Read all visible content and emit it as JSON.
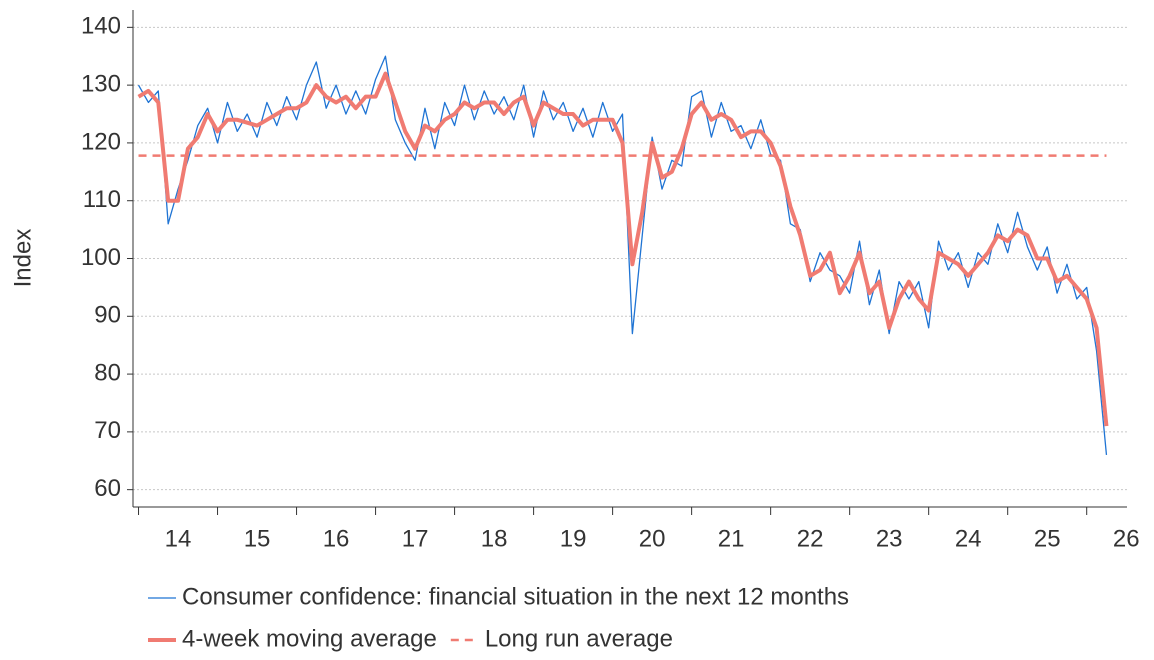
{
  "chart_data": {
    "type": "line",
    "y_label": "Index",
    "xlim": [
      13.43,
      26.01
    ],
    "ylim": [
      57,
      143
    ],
    "xticks": [
      14,
      15,
      16,
      17,
      18,
      19,
      20,
      21,
      22,
      23,
      24,
      25,
      26
    ],
    "xtick_marks": [
      13.5,
      14.5,
      15.5,
      16.5,
      17.5,
      18.5,
      19.5,
      20.5,
      21.5,
      22.5,
      23.5,
      24.5,
      25.5
    ],
    "yticks": [
      60,
      70,
      80,
      90,
      100,
      110,
      120,
      130,
      140
    ],
    "grid": true,
    "legend": "bottom",
    "x": [
      13.5,
      13.625,
      13.75,
      13.875,
      14.0,
      14.125,
      14.25,
      14.375,
      14.5,
      14.625,
      14.75,
      14.875,
      15.0,
      15.125,
      15.25,
      15.375,
      15.5,
      15.625,
      15.75,
      15.875,
      16.0,
      16.125,
      16.25,
      16.375,
      16.5,
      16.625,
      16.75,
      16.875,
      17.0,
      17.125,
      17.25,
      17.375,
      17.5,
      17.625,
      17.75,
      17.875,
      18.0,
      18.125,
      18.25,
      18.375,
      18.5,
      18.625,
      18.75,
      18.875,
      19.0,
      19.125,
      19.25,
      19.375,
      19.5,
      19.625,
      19.75,
      19.875,
      20.0,
      20.125,
      20.25,
      20.375,
      20.5,
      20.625,
      20.75,
      20.875,
      21.0,
      21.125,
      21.25,
      21.375,
      21.5,
      21.625,
      21.75,
      21.875,
      22.0,
      22.125,
      22.25,
      22.375,
      22.5,
      22.625,
      22.75,
      22.875,
      23.0,
      23.125,
      23.25,
      23.375,
      23.5,
      23.625,
      23.75,
      23.875,
      24.0,
      24.125,
      24.25,
      24.375,
      24.5,
      24.625,
      24.75,
      24.875,
      25.0,
      25.125,
      25.25,
      25.375,
      25.5,
      25.625,
      25.75
    ],
    "series": [
      {
        "name": "Consumer confidence: financial situation in the next 12 months",
        "color": "#1f74d4",
        "width": 1.3,
        "values": [
          130,
          127,
          129,
          106,
          112,
          117,
          123,
          126,
          120,
          127,
          122,
          125,
          121,
          127,
          123,
          128,
          124,
          130,
          134,
          126,
          130,
          125,
          129,
          125,
          131,
          135,
          124,
          120,
          117,
          126,
          119,
          127,
          123,
          130,
          124,
          129,
          125,
          128,
          124,
          130,
          121,
          129,
          124,
          127,
          122,
          126,
          121,
          127,
          122,
          125,
          87,
          104,
          121,
          112,
          117,
          116,
          128,
          129,
          121,
          127,
          122,
          123,
          119,
          124,
          118,
          117,
          106,
          105,
          96,
          101,
          98,
          97,
          94,
          103,
          92,
          98,
          87,
          96,
          93,
          96,
          88,
          103,
          98,
          101,
          95,
          101,
          99,
          106,
          101,
          108,
          102,
          98,
          102,
          94,
          99,
          93,
          95,
          84,
          66
        ]
      },
      {
        "name": "4-week moving average",
        "color": "#f07b72",
        "width": 4,
        "values": [
          128,
          129,
          127,
          110,
          110,
          119,
          121,
          125,
          122,
          124,
          124,
          123.5,
          123,
          124,
          125,
          126,
          126,
          127,
          130,
          128,
          127,
          128,
          126,
          128,
          128,
          132,
          127,
          122,
          119,
          123,
          122,
          124,
          125,
          127,
          126,
          127,
          127,
          125,
          127,
          128,
          123,
          127,
          126,
          125,
          125,
          123,
          124,
          124,
          124,
          120,
          99,
          108,
          120,
          114,
          115,
          119,
          125,
          127,
          124,
          125,
          124,
          121,
          122,
          122,
          120,
          116,
          109,
          104,
          97,
          98,
          101,
          94,
          97,
          101,
          94,
          96,
          88,
          93,
          96,
          93,
          91,
          101,
          100,
          99,
          97,
          99,
          101,
          104,
          103,
          105,
          104,
          100,
          100,
          96,
          97,
          95,
          93,
          88,
          71
        ]
      },
      {
        "name": "Long run average",
        "color": "#f07b72",
        "width": 2.5,
        "dash": "8 6",
        "x": [
          13.5,
          25.75
        ],
        "values": [
          117.8,
          117.8
        ]
      }
    ]
  }
}
